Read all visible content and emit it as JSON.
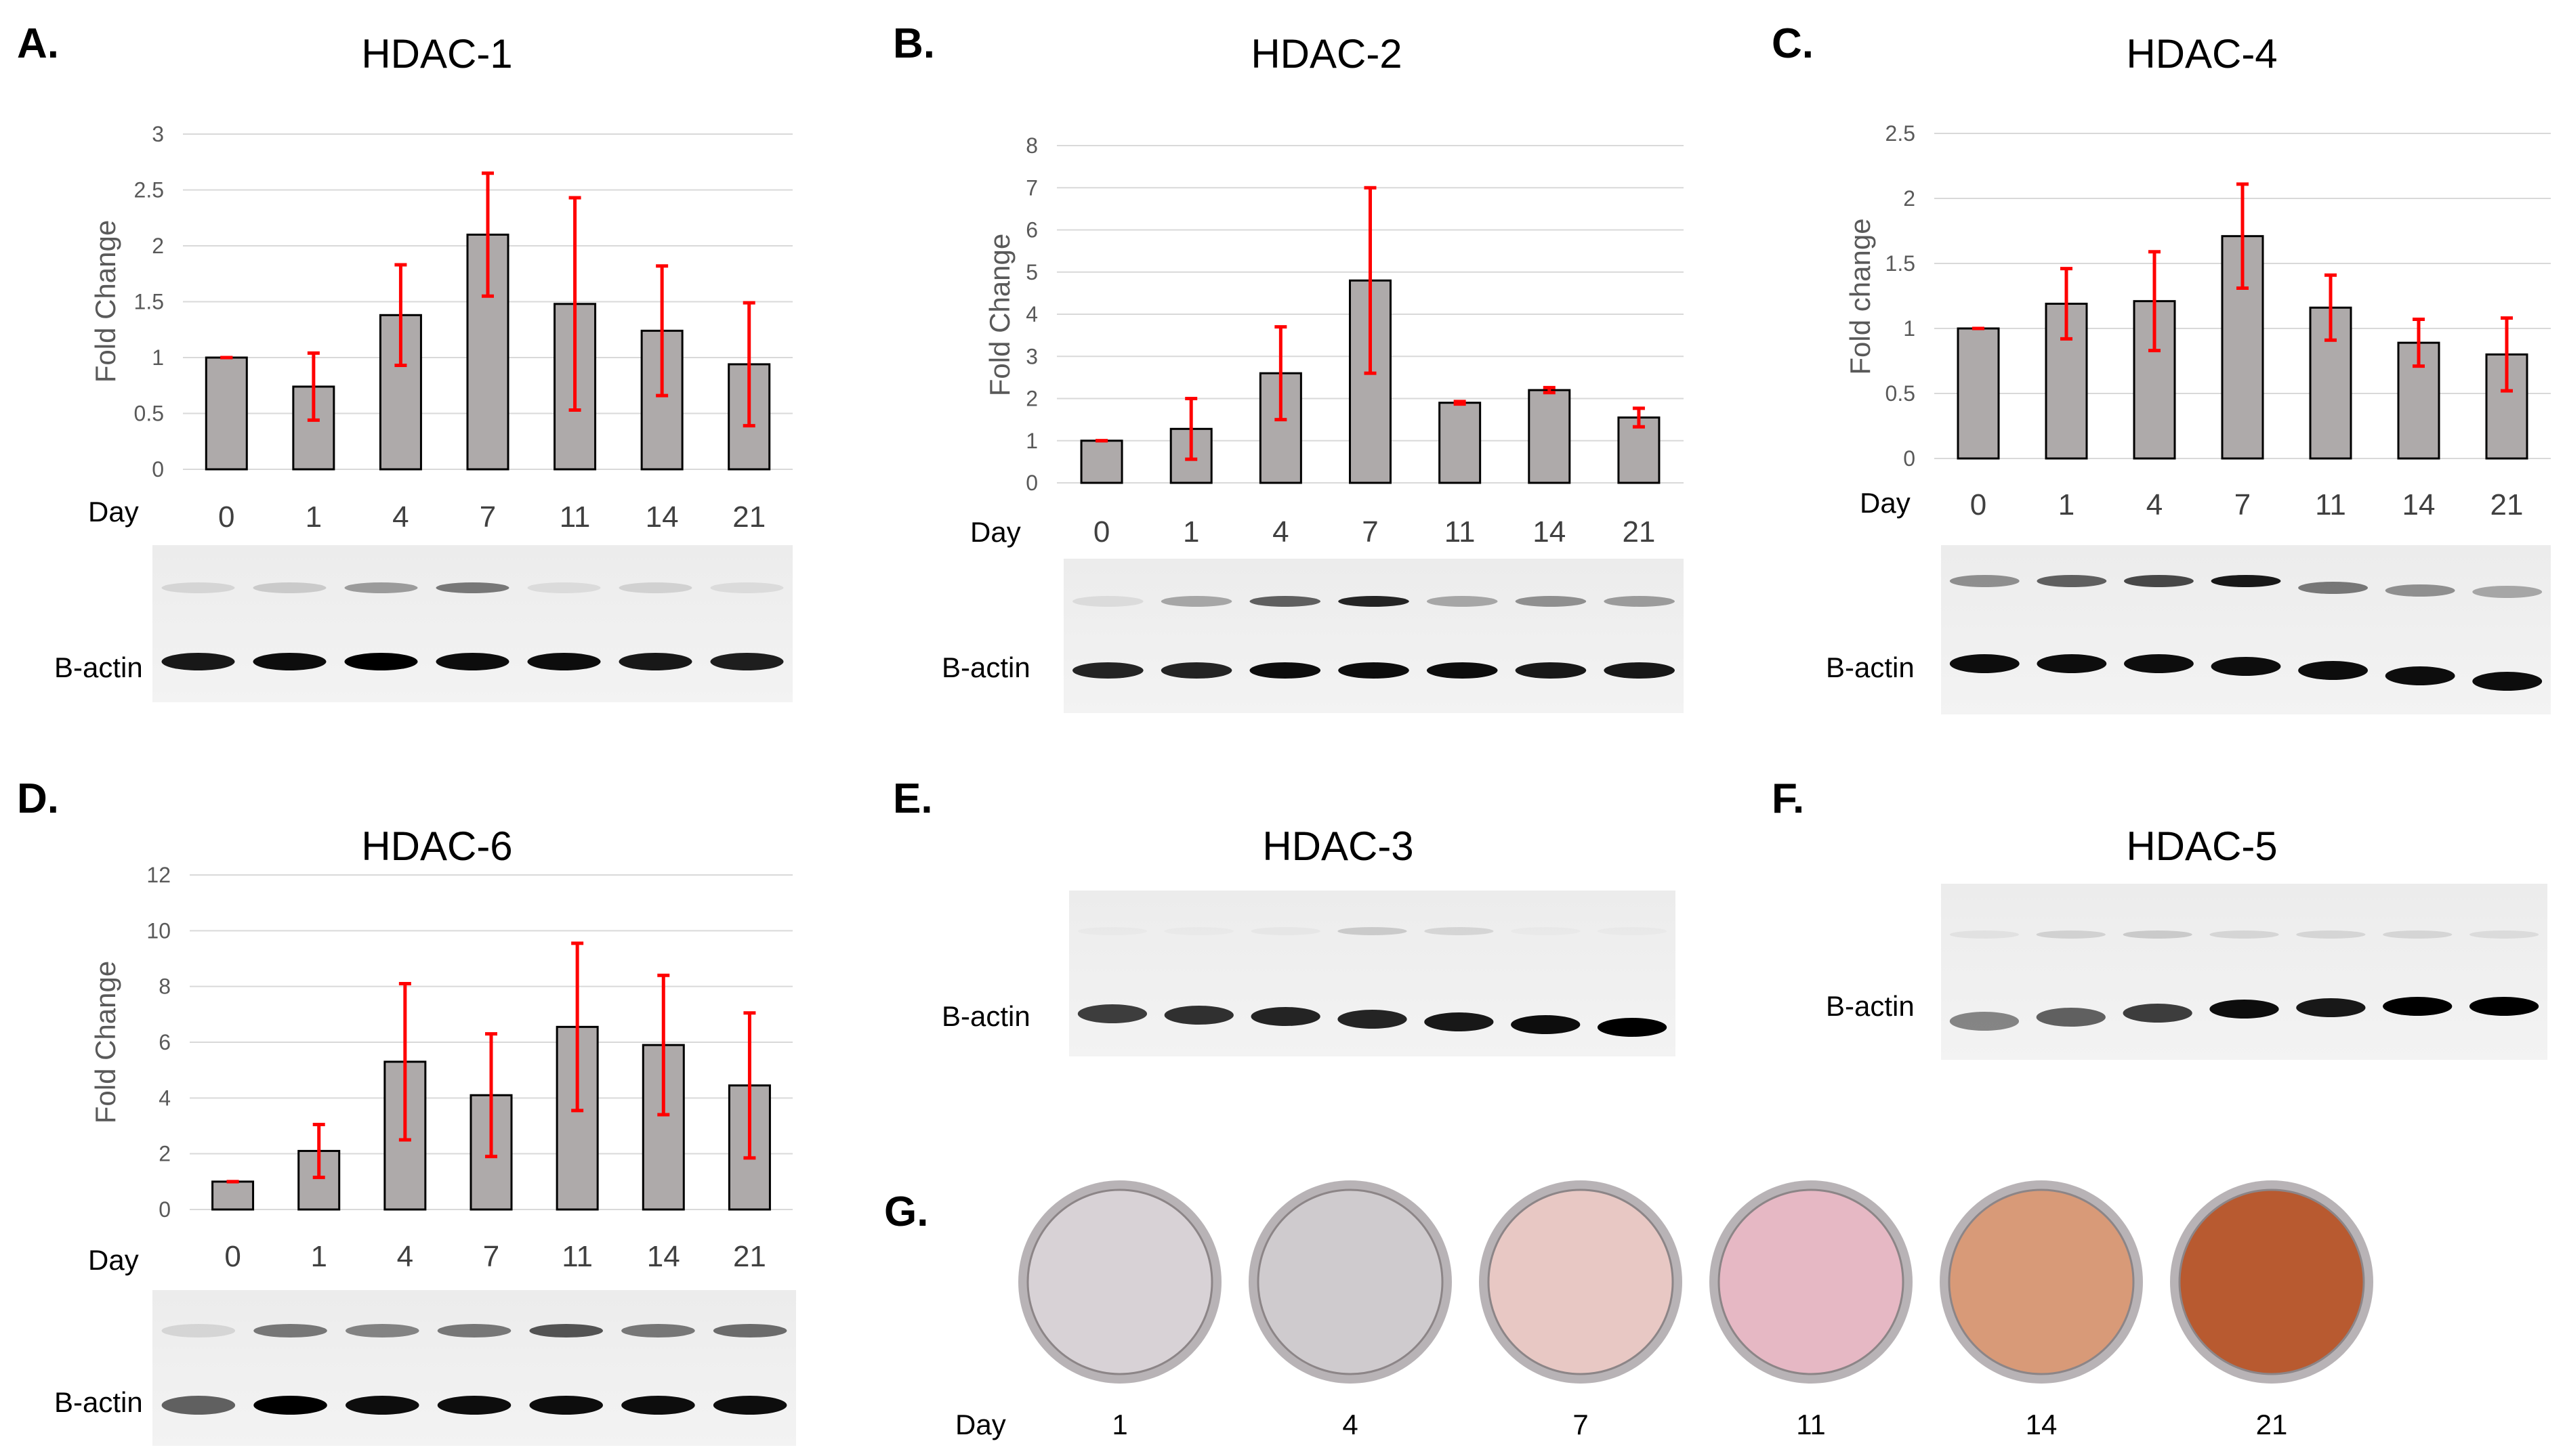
{
  "chart_data": [
    {
      "id": "hdac1",
      "letter": "A.",
      "type": "bar",
      "title": "HDAC-1",
      "xlabel": "Day",
      "ylabel": "Fold Change",
      "categories": [
        "0",
        "1",
        "4",
        "7",
        "11",
        "14",
        "21"
      ],
      "values": [
        1.0,
        0.74,
        1.38,
        2.1,
        1.48,
        1.24,
        0.94
      ],
      "errors": [
        0.0,
        0.3,
        0.45,
        0.55,
        0.95,
        0.58,
        0.55
      ],
      "ylim": [
        0,
        3
      ],
      "yticks": [
        "0",
        "0.5",
        "1",
        "1.5",
        "2",
        "2.5",
        "3"
      ],
      "blot_rows": [
        "",
        "B-actin"
      ]
    },
    {
      "id": "hdac2",
      "letter": "B.",
      "type": "bar",
      "title": "HDAC-2",
      "xlabel": "Day",
      "ylabel": "Fold Change",
      "categories": [
        "0",
        "1",
        "4",
        "7",
        "11",
        "14",
        "21"
      ],
      "values": [
        1.0,
        1.28,
        2.6,
        4.8,
        1.9,
        2.2,
        1.55
      ],
      "errors": [
        0.0,
        0.72,
        1.1,
        2.2,
        0.03,
        0.06,
        0.22
      ],
      "ylim": [
        0,
        8
      ],
      "yticks": [
        "0",
        "1",
        "2",
        "3",
        "4",
        "5",
        "6",
        "7",
        "8"
      ],
      "blot_rows": [
        "",
        "B-actin"
      ]
    },
    {
      "id": "hdac4",
      "letter": "C.",
      "type": "bar",
      "title": "HDAC-4",
      "xlabel": "Day",
      "ylabel": "Fold change",
      "categories": [
        "0",
        "1",
        "4",
        "7",
        "11",
        "14",
        "21"
      ],
      "values": [
        1.0,
        1.19,
        1.21,
        1.71,
        1.16,
        0.89,
        0.8
      ],
      "errors": [
        0.0,
        0.27,
        0.38,
        0.4,
        0.25,
        0.18,
        0.28
      ],
      "ylim": [
        0,
        2.5
      ],
      "yticks": [
        "0",
        "0.5",
        "1",
        "1.5",
        "2",
        "2.5"
      ],
      "blot_rows": [
        "",
        "B-actin"
      ]
    },
    {
      "id": "hdac6",
      "letter": "D.",
      "type": "bar",
      "title": "HDAC-6",
      "xlabel": "Day",
      "ylabel": "Fold Change",
      "categories": [
        "0",
        "1",
        "4",
        "7",
        "11",
        "14",
        "21"
      ],
      "values": [
        1.0,
        2.1,
        5.3,
        4.1,
        6.55,
        5.9,
        4.45
      ],
      "errors": [
        0.0,
        0.95,
        2.8,
        2.2,
        3.0,
        2.5,
        2.6
      ],
      "ylim": [
        0,
        12
      ],
      "yticks": [
        "0",
        "2",
        "4",
        "6",
        "8",
        "10",
        "12"
      ],
      "blot_rows": [
        "",
        "B-actin"
      ]
    }
  ],
  "blots_only": [
    {
      "id": "hdac3",
      "letter": "E.",
      "title": "HDAC-3",
      "row_label": "B-actin"
    },
    {
      "id": "hdac5",
      "letter": "F.",
      "title": "HDAC-5",
      "row_label": "B-actin"
    }
  ],
  "staining": {
    "letter": "G.",
    "xlabel": "Day",
    "days": [
      "1",
      "4",
      "7",
      "11",
      "14",
      "21"
    ],
    "colors": [
      "#d8d2d6",
      "#cfcbce",
      "#e8c8c4",
      "#e6b8c4",
      "#d89a78",
      "#b85a30"
    ]
  }
}
